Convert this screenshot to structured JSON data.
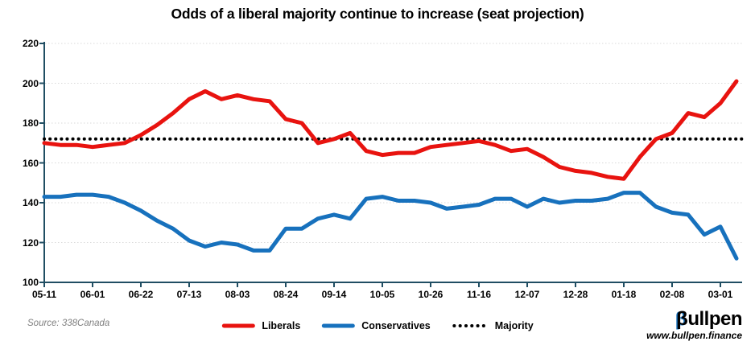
{
  "title": "Odds of a liberal majority continue to increase (seat projection)",
  "source": "Source: 338Canada",
  "logo": {
    "beta": "β",
    "rest": "ullpen",
    "url": "www.bullpen.finance"
  },
  "chart_data": {
    "type": "line",
    "title": "Odds of a liberal majority continue to increase (seat projection)",
    "x_tick_every": 3,
    "categories": [
      "05-11",
      "05-18",
      "05-25",
      "06-01",
      "06-08",
      "06-15",
      "06-22",
      "06-29",
      "07-06",
      "07-13",
      "07-20",
      "07-27",
      "08-03",
      "08-10",
      "08-17",
      "08-24",
      "08-31",
      "09-07",
      "09-14",
      "09-21",
      "09-28",
      "10-05",
      "10-12",
      "10-19",
      "10-26",
      "11-02",
      "11-09",
      "11-16",
      "11-23",
      "11-30",
      "12-07",
      "12-14",
      "12-21",
      "12-28",
      "01-04",
      "01-11",
      "01-18",
      "01-25",
      "02-01",
      "02-08",
      "02-15",
      "02-22",
      "03-01",
      "03-08"
    ],
    "series": [
      {
        "name": "Liberals",
        "color": "#e8130f",
        "style": "solid",
        "values": [
          170,
          169,
          169,
          168,
          169,
          170,
          174,
          179,
          185,
          192,
          196,
          192,
          194,
          192,
          191,
          182,
          180,
          170,
          172,
          175,
          166,
          164,
          165,
          165,
          168,
          169,
          170,
          171,
          169,
          166,
          167,
          163,
          158,
          156,
          155,
          153,
          152,
          163,
          172,
          175,
          185,
          183,
          190,
          201
        ]
      },
      {
        "name": "Conservatives",
        "color": "#1771bd",
        "style": "solid",
        "values": [
          143,
          143,
          144,
          144,
          143,
          140,
          136,
          131,
          127,
          121,
          118,
          120,
          119,
          116,
          116,
          127,
          127,
          132,
          134,
          132,
          142,
          143,
          141,
          141,
          140,
          137,
          138,
          139,
          142,
          142,
          138,
          142,
          140,
          141,
          141,
          142,
          145,
          145,
          138,
          135,
          134,
          124,
          128,
          112
        ]
      },
      {
        "name": "Majority",
        "color": "#000000",
        "style": "dotted",
        "constant": 172
      }
    ],
    "ylim": [
      100,
      220
    ],
    "yticks": [
      100,
      120,
      140,
      160,
      180,
      200,
      220
    ],
    "grid": "horizontal-dotted",
    "legend_position": "bottom-center",
    "axis_color": "#204e63",
    "grid_color": "#d9d9d9"
  }
}
